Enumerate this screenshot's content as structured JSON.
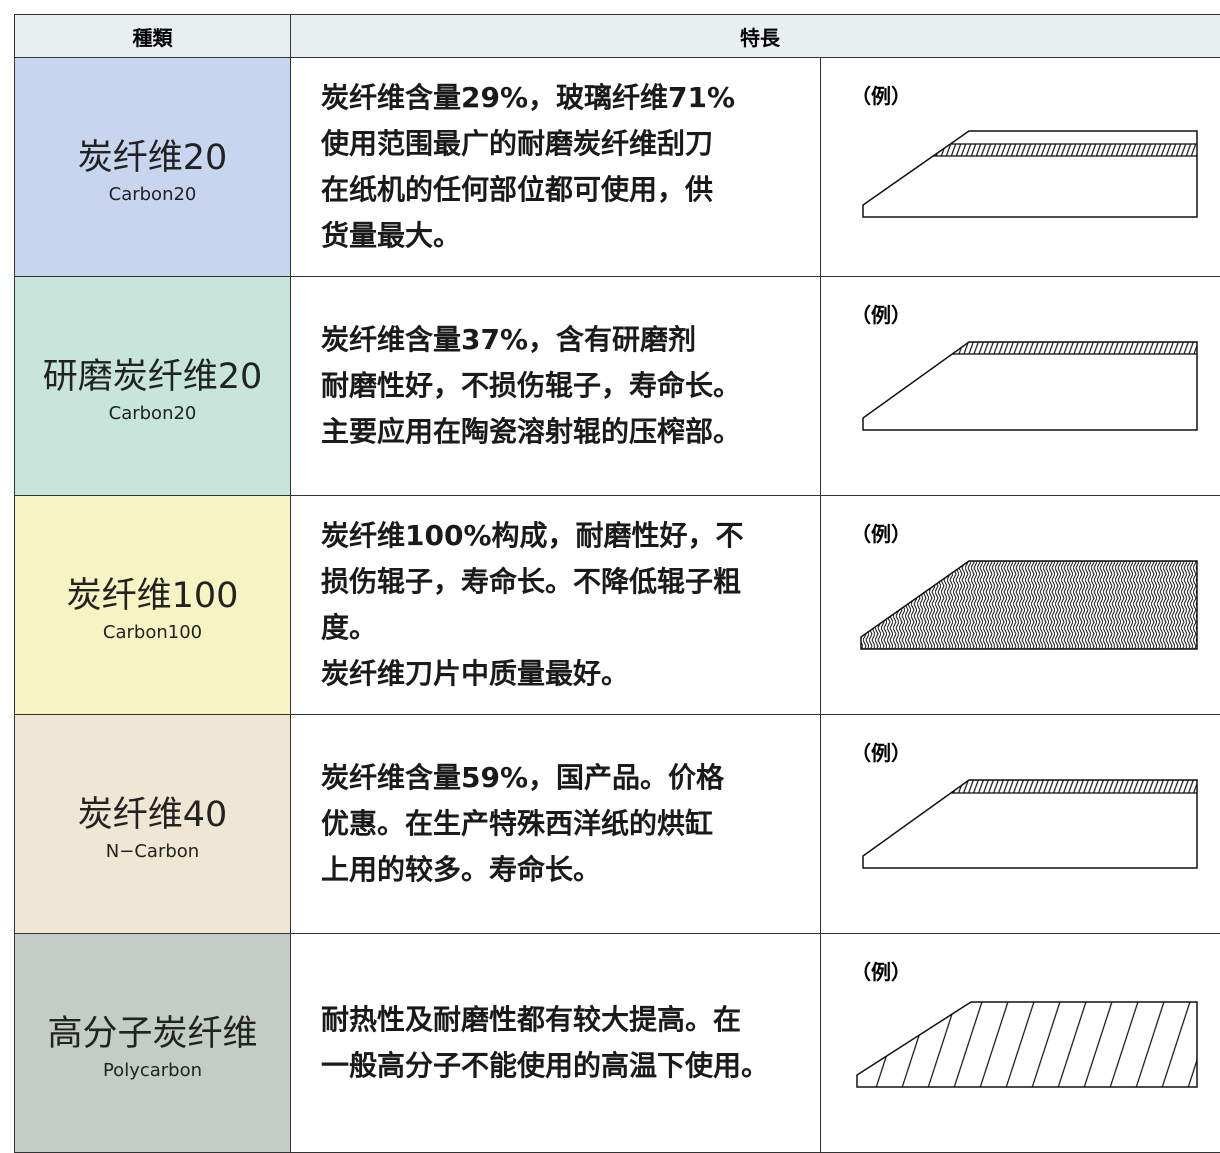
{
  "header": {
    "type": "種類",
    "features": "特長"
  },
  "rows": [
    {
      "name": "炭纤维20",
      "sub": "Carbon20",
      "description": [
        "炭纤维含量29%，玻璃纤维71%",
        "使用范围最广的耐磨炭纤维刮刀",
        "在纸机的任何部位都可使用，供",
        "货量最大。"
      ],
      "example": "（例）"
    },
    {
      "name": "研磨炭纤维20",
      "sub": "Carbon20",
      "description": [
        "炭纤维含量37%，含有研磨剂",
        "耐磨性好，不损伤辊子，寿命长。",
        "主要应用在陶瓷溶射辊的压榨部。"
      ],
      "example": "（例）"
    },
    {
      "name": "炭纤维100",
      "sub": "Carbon100",
      "description": [
        "炭纤维100%构成，耐磨性好，不",
        "损伤辊子，寿命长。不降低辊子粗",
        "度。",
        "炭纤维刀片中质量最好。"
      ],
      "example": "（例）"
    },
    {
      "name": "炭纤维40",
      "sub": "N−Carbon",
      "description": [
        "炭纤维含量59%，国产品。价格",
        "优惠。在生产特殊西洋纸的烘缸",
        "上用的较多。寿命长。"
      ],
      "example": "（例）"
    },
    {
      "name": "高分子炭纤维",
      "sub": "Polycarbon",
      "description": [
        "耐热性及耐磨性都有较大提高。在",
        "一般高分子不能使用的高温下使用。"
      ],
      "example": "（例）"
    }
  ]
}
